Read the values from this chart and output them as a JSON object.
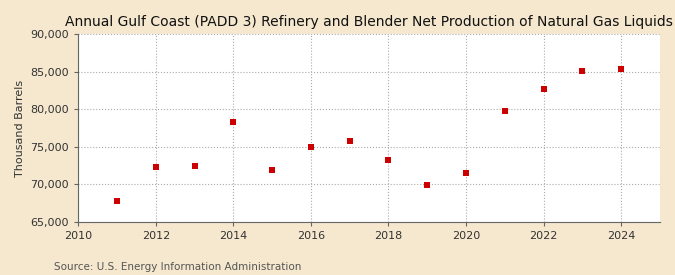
{
  "title": "Annual Gulf Coast (PADD 3) Refinery and Blender Net Production of Natural Gas Liquids",
  "ylabel": "Thousand Barrels",
  "source": "Source: U.S. Energy Information Administration",
  "figure_bg": "#f5e8ce",
  "plot_bg": "#ffffff",
  "x": [
    2011,
    2012,
    2013,
    2014,
    2015,
    2016,
    2017,
    2018,
    2019,
    2020,
    2021,
    2022,
    2023,
    2024
  ],
  "y": [
    67800,
    72250,
    72500,
    78250,
    71900,
    74950,
    75750,
    73300,
    69950,
    71450,
    79750,
    82750,
    85050,
    85400
  ],
  "marker_color": "#cc0000",
  "marker_size": 4,
  "xlim": [
    2010,
    2025
  ],
  "ylim": [
    65000,
    90000
  ],
  "yticks": [
    65000,
    70000,
    75000,
    80000,
    85000,
    90000
  ],
  "xticks": [
    2010,
    2012,
    2014,
    2016,
    2018,
    2020,
    2022,
    2024
  ],
  "grid_color": "#aaaaaa",
  "spine_color": "#666666",
  "title_fontsize": 10,
  "label_fontsize": 8,
  "tick_fontsize": 8,
  "source_fontsize": 7.5
}
